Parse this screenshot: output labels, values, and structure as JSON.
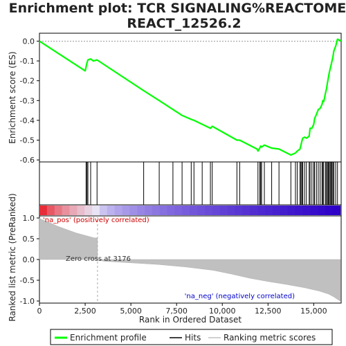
{
  "chart_data": {
    "type": "line",
    "title_line1": "Enrichment plot: TCR SIGNALING%REACTOME%",
    "title_line2": "REACT_12526.2",
    "xlabel": "Rank in Ordered Dataset",
    "ylabel_top": "Enrichment score (ES)",
    "ylabel_bottom": "Ranked list metric (PreRanked)",
    "xlim": [
      0,
      16500
    ],
    "x_ticks": [
      0,
      2500,
      5000,
      7500,
      10000,
      12500,
      15000
    ],
    "x_tick_labels": [
      "0",
      "2,500",
      "5,000",
      "7,500",
      "10,000",
      "12,500",
      "15,000"
    ],
    "es_ylim": [
      -0.61,
      0.04
    ],
    "es_ticks": [
      0.0,
      -0.1,
      -0.2,
      -0.3,
      -0.4,
      -0.5,
      -0.6
    ],
    "es_tick_labels": [
      "0.0",
      "-0.1",
      "-0.2",
      "-0.3",
      "-0.4",
      "-0.5",
      "-0.6"
    ],
    "metric_ylim": [
      -1.05,
      1.05
    ],
    "metric_ticks": [
      1.0,
      0.5,
      0.0,
      -0.5,
      -1.0
    ],
    "metric_tick_labels": [
      "1.0",
      "0.5",
      "0.0",
      "-0.5",
      "-1.0"
    ],
    "hits": [
      2550,
      2600,
      2650,
      2800,
      3150,
      5700,
      6550,
      7300,
      7800,
      8300,
      8450,
      8900,
      9350,
      9450,
      10800,
      10950,
      11950,
      12050,
      12100,
      12150,
      12300,
      12700,
      13100,
      13750,
      14000,
      14100,
      14250,
      14300,
      14350,
      14400,
      14500,
      14600,
      14750,
      14800,
      14900,
      15000,
      15050,
      15150,
      15250,
      15350,
      15450,
      15500,
      15550,
      15650,
      15700,
      15750,
      15800,
      15850,
      15900,
      15950,
      16000,
      16050,
      16100,
      16200,
      16300
    ],
    "es_curve": {
      "x": [
        0,
        2500,
        2550,
        2600,
        2650,
        2800,
        2950,
        3150,
        3200,
        5700,
        6550,
        7300,
        7800,
        8300,
        8450,
        8900,
        9350,
        9450,
        10800,
        10950,
        11900,
        11950,
        12050,
        12100,
        12150,
        12300,
        12700,
        13100,
        13750,
        14000,
        14100,
        14250,
        14300,
        14350,
        14400,
        14500,
        14600,
        14750,
        14800,
        14900,
        15000,
        15050,
        15150,
        15250,
        15350,
        15450,
        15500,
        15550,
        15650,
        15700,
        15750,
        15800,
        15850,
        15900,
        15950,
        16000,
        16050,
        16100,
        16200,
        16300,
        16500
      ],
      "y": [
        0.0,
        -0.15,
        -0.13,
        -0.11,
        -0.095,
        -0.09,
        -0.1,
        -0.095,
        -0.098,
        -0.25,
        -0.3,
        -0.345,
        -0.375,
        -0.395,
        -0.4,
        -0.42,
        -0.44,
        -0.43,
        -0.5,
        -0.5,
        -0.545,
        -0.555,
        -0.54,
        -0.53,
        -0.535,
        -0.525,
        -0.54,
        -0.545,
        -0.575,
        -0.565,
        -0.555,
        -0.545,
        -0.525,
        -0.505,
        -0.49,
        -0.485,
        -0.49,
        -0.48,
        -0.44,
        -0.44,
        -0.42,
        -0.39,
        -0.37,
        -0.345,
        -0.34,
        -0.32,
        -0.3,
        -0.305,
        -0.26,
        -0.24,
        -0.21,
        -0.185,
        -0.16,
        -0.14,
        -0.12,
        -0.1,
        -0.08,
        -0.05,
        -0.025,
        0.01,
        0.0
      ]
    },
    "metric_curve": {
      "x": [
        0,
        100,
        300,
        600,
        1000,
        1500,
        2000,
        2500,
        3000,
        3176,
        3500,
        5000,
        6500,
        8000,
        9500,
        10500,
        11500,
        12500,
        13500,
        14500,
        15300,
        15800,
        16100,
        16300,
        16450
      ],
      "y": [
        1.0,
        0.97,
        0.93,
        0.88,
        0.8,
        0.72,
        0.64,
        0.58,
        0.52,
        0.0,
        -0.04,
        -0.08,
        -0.12,
        -0.18,
        -0.26,
        -0.35,
        -0.45,
        -0.53,
        -0.6,
        -0.68,
        -0.76,
        -0.83,
        -0.9,
        -0.96,
        -1.0
      ]
    },
    "zero_cross_label": "Zero cross at 3176",
    "zero_cross_x": 3176,
    "pos_label": "'na_pos' (positively correlated)",
    "neg_label": "'na_neg' (negatively correlated)",
    "legend": [
      {
        "label": "Enrichment profile",
        "color": "#00ff00"
      },
      {
        "label": "Hits",
        "color": "#000000"
      },
      {
        "label": "Ranking metric scores",
        "color": "#c0c0c0"
      }
    ],
    "colors": {
      "es_line": "#00ff00",
      "metric_fill": "#c0c0c0",
      "pos_text": "#cc0000",
      "neg_text": "#0000cc",
      "band_red": "#e8000b",
      "band_blue": "#2d00c8"
    }
  }
}
